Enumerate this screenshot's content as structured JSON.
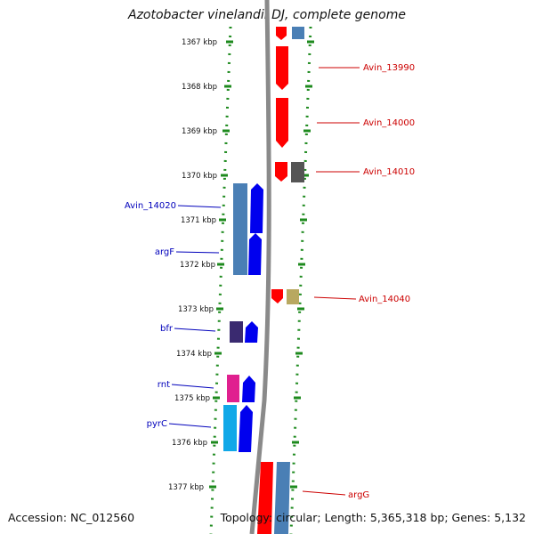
{
  "title": "Azotobacter vinelandii DJ, complete genome",
  "accession": "Accession: NC_012560",
  "topology": "Topology: circular; Length: 5,365,318 bp; Genes: 5,132",
  "colors": {
    "backbone": "#8a8a8a",
    "axis_dots": "#1e8a1e",
    "forward_label": "#cc0000",
    "reverse_label": "#0000bb",
    "gene_red": "#ff0000",
    "gene_blue": "#0000ee",
    "gene_steelblue": "#4a7fb5",
    "gene_grey": "#555555",
    "gene_khaki": "#b8a860",
    "gene_indigo": "#3a2a70",
    "gene_magenta": "#e0208f",
    "gene_cyan": "#10a8e8"
  },
  "axis_ticks": [
    "1367 kbp",
    "1368 kbp",
    "1369 kbp",
    "1370 kbp",
    "1371 kbp",
    "1372 kbp",
    "1373 kbp",
    "1374 kbp",
    "1375 kbp",
    "1376 kbp",
    "1377 kbp"
  ],
  "gene_labels": {
    "forward": [
      "Avin_13990",
      "Avin_14000",
      "Avin_14010",
      "Avin_14040",
      "argG"
    ],
    "reverse": [
      "Avin_14020",
      "argF",
      "bfr",
      "rnt",
      "pyrC"
    ]
  }
}
